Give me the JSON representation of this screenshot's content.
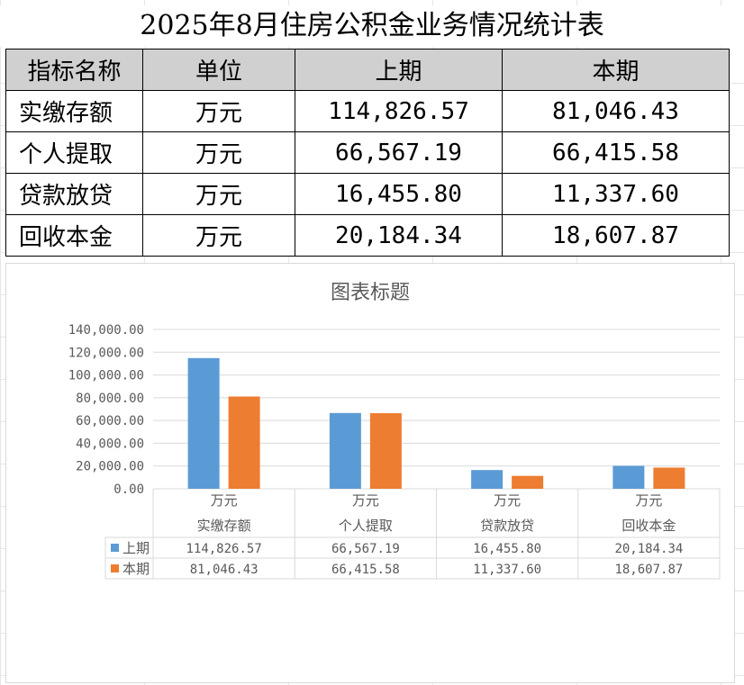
{
  "title": "2025年8月住房公积金业务情况统计表",
  "table": {
    "headers": [
      "指标名称",
      "单位",
      "上期",
      "本期"
    ],
    "rows": [
      {
        "name": "实缴存额",
        "unit": "万元",
        "prev": "114,826.57",
        "curr": "81,046.43"
      },
      {
        "name": "个人提取",
        "unit": "万元",
        "prev": "66,567.19",
        "curr": "66,415.58"
      },
      {
        "name": "贷款放贷",
        "unit": "万元",
        "prev": "16,455.80",
        "curr": "11,337.60"
      },
      {
        "name": "回收本金",
        "unit": "万元",
        "prev": "20,184.34",
        "curr": "18,607.87"
      }
    ]
  },
  "chart_data": {
    "type": "bar",
    "title": "图表标题",
    "categories": [
      "实缴存额",
      "个人提取",
      "贷款放贷",
      "回收本金"
    ],
    "category_units": [
      "万元",
      "万元",
      "万元",
      "万元"
    ],
    "ylim": [
      0,
      140000
    ],
    "yticks": [
      "0.00",
      "20,000.00",
      "40,000.00",
      "60,000.00",
      "80,000.00",
      "100,000.00",
      "120,000.00",
      "140,000.00"
    ],
    "grid": true,
    "legend": "data-table-left",
    "series": [
      {
        "name": "上期",
        "color": "#5b9bd5",
        "values": [
          114826.57,
          66567.19,
          16455.8,
          20184.34
        ],
        "labels": [
          "114,826.57",
          "66,567.19",
          "16,455.80",
          "20,184.34"
        ]
      },
      {
        "name": "本期",
        "color": "#ed7d31",
        "values": [
          81046.43,
          66415.58,
          11337.6,
          18607.87
        ],
        "labels": [
          "81,046.43",
          "66,415.58",
          "11,337.60",
          "18,607.87"
        ]
      }
    ]
  }
}
